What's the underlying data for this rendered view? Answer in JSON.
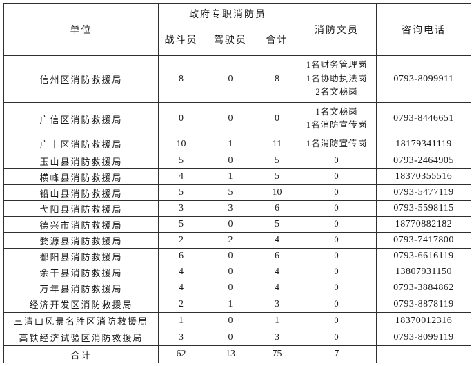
{
  "table": {
    "header": {
      "unit": "单位",
      "group": "政府专职消防员",
      "combat": "战斗员",
      "driver": "驾驶员",
      "total": "合计",
      "clerk": "消防文员",
      "phone": "咨询电话"
    },
    "rows": [
      {
        "unit": "信州区消防救援局",
        "combat": "8",
        "driver": "0",
        "total": "8",
        "clerk": "1名财务管理岗\n1名协助执法岗\n2名文秘岗",
        "phone": "0793-8099911"
      },
      {
        "unit": "广信区消防救援局",
        "combat": "0",
        "driver": "0",
        "total": "0",
        "clerk": "1名文秘岗\n1名消防宣传岗",
        "phone": "0793-8446651"
      },
      {
        "unit": "广丰区消防救援局",
        "combat": "10",
        "driver": "1",
        "total": "11",
        "clerk": "1名消防宣传岗",
        "phone": "18179341119"
      },
      {
        "unit": "玉山县消防救援局",
        "combat": "5",
        "driver": "0",
        "total": "5",
        "clerk": "0",
        "phone": "0793-2464905"
      },
      {
        "unit": "横峰县消防救援局",
        "combat": "4",
        "driver": "1",
        "total": "5",
        "clerk": "0",
        "phone": "18370355516"
      },
      {
        "unit": "铅山县消防救援局",
        "combat": "5",
        "driver": "5",
        "total": "10",
        "clerk": "0",
        "phone": "0793-5477119"
      },
      {
        "unit": "弋阳县消防救援局",
        "combat": "3",
        "driver": "3",
        "total": "6",
        "clerk": "0",
        "phone": "0793-5598115"
      },
      {
        "unit": "德兴市消防救援局",
        "combat": "5",
        "driver": "0",
        "total": "5",
        "clerk": "0",
        "phone": "18770882182"
      },
      {
        "unit": "婺源县消防救援局",
        "combat": "2",
        "driver": "2",
        "total": "4",
        "clerk": "0",
        "phone": "0793-7417800"
      },
      {
        "unit": "鄱阳县消防救援局",
        "combat": "6",
        "driver": "0",
        "total": "6",
        "clerk": "0",
        "phone": "0793-6616119"
      },
      {
        "unit": "余干县消防救援局",
        "combat": "4",
        "driver": "0",
        "total": "4",
        "clerk": "0",
        "phone": "13807931150"
      },
      {
        "unit": "万年县消防救援局",
        "combat": "4",
        "driver": "0",
        "total": "4",
        "clerk": "0",
        "phone": "0793-3884862"
      },
      {
        "unit": "经济开发区消防救援局",
        "combat": "2",
        "driver": "1",
        "total": "3",
        "clerk": "0",
        "phone": "0793-8878119"
      },
      {
        "unit": "三清山风景名胜区消防救援局",
        "combat": "1",
        "driver": "0",
        "total": "1",
        "clerk": "0",
        "phone": "18370012316"
      },
      {
        "unit": "高铁经济试验区消防救援局",
        "combat": "3",
        "driver": "0",
        "total": "3",
        "clerk": "0",
        "phone": "0793-8099119"
      }
    ],
    "footer": {
      "unit": "合计",
      "combat": "62",
      "driver": "13",
      "total": "75",
      "clerk": "7",
      "phone": ""
    }
  }
}
